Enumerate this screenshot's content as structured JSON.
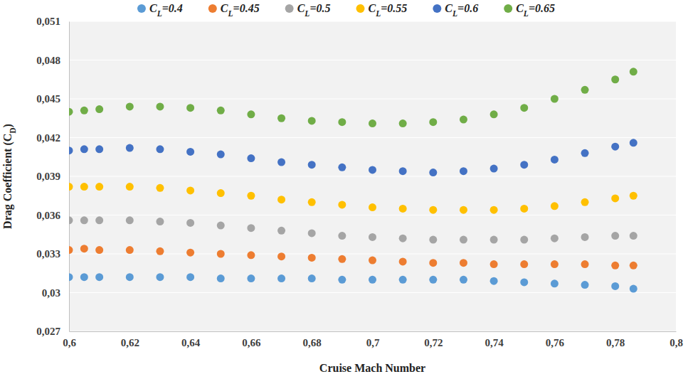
{
  "chart_data": {
    "type": "scatter",
    "x_label": "Cruise Mach Number",
    "y_label": "Drag Coefficient (CD)",
    "x": [
      0.6,
      0.605,
      0.61,
      0.62,
      0.63,
      0.64,
      0.65,
      0.66,
      0.67,
      0.68,
      0.69,
      0.7,
      0.71,
      0.72,
      0.73,
      0.74,
      0.75,
      0.76,
      0.77,
      0.78,
      0.786
    ],
    "series": [
      {
        "name": "CL=0.4",
        "color": "#5b9bd5",
        "values": [
          0.0312,
          0.0312,
          0.0312,
          0.0312,
          0.0312,
          0.0312,
          0.0311,
          0.0311,
          0.0311,
          0.0311,
          0.031,
          0.031,
          0.031,
          0.031,
          0.031,
          0.0309,
          0.0308,
          0.0307,
          0.0306,
          0.0305,
          0.0303
        ]
      },
      {
        "name": "CL=0.45",
        "color": "#ed7d31",
        "values": [
          0.0333,
          0.0334,
          0.0333,
          0.0333,
          0.0332,
          0.0331,
          0.033,
          0.0329,
          0.0328,
          0.0327,
          0.0326,
          0.0325,
          0.0324,
          0.0323,
          0.0323,
          0.0322,
          0.0322,
          0.0322,
          0.0322,
          0.0321,
          0.0321
        ]
      },
      {
        "name": "CL=0.5",
        "color": "#a5a5a5",
        "values": [
          0.0356,
          0.0356,
          0.0356,
          0.0356,
          0.0355,
          0.0354,
          0.0352,
          0.035,
          0.0348,
          0.0346,
          0.0344,
          0.0343,
          0.0342,
          0.0341,
          0.0341,
          0.0341,
          0.0341,
          0.0342,
          0.0343,
          0.0344,
          0.0344
        ]
      },
      {
        "name": "CL=0.55",
        "color": "#ffc000",
        "values": [
          0.0382,
          0.0382,
          0.0382,
          0.0382,
          0.0381,
          0.0379,
          0.0377,
          0.0375,
          0.0372,
          0.037,
          0.0368,
          0.0366,
          0.0365,
          0.0364,
          0.0364,
          0.0364,
          0.0365,
          0.0367,
          0.037,
          0.0373,
          0.0375
        ]
      },
      {
        "name": "CL=0.6",
        "color": "#4472c4",
        "values": [
          0.041,
          0.0411,
          0.0411,
          0.0412,
          0.0411,
          0.0409,
          0.0407,
          0.0404,
          0.0401,
          0.0399,
          0.0397,
          0.0395,
          0.0394,
          0.0393,
          0.0394,
          0.0396,
          0.0399,
          0.0403,
          0.0408,
          0.0413,
          0.0416
        ]
      },
      {
        "name": "CL=0.65",
        "color": "#70ad47",
        "values": [
          0.044,
          0.0441,
          0.0442,
          0.0444,
          0.0444,
          0.0443,
          0.0441,
          0.0438,
          0.0435,
          0.0433,
          0.0432,
          0.0431,
          0.0431,
          0.0432,
          0.0434,
          0.0438,
          0.0443,
          0.045,
          0.0457,
          0.0465,
          0.0471
        ]
      }
    ],
    "xlim": [
      0.6,
      0.8
    ],
    "xticks": [
      {
        "value": 0.6,
        "label": "0,6"
      },
      {
        "value": 0.62,
        "label": "0,62"
      },
      {
        "value": 0.64,
        "label": "0,64"
      },
      {
        "value": 0.66,
        "label": "0,66"
      },
      {
        "value": 0.68,
        "label": "0,68"
      },
      {
        "value": 0.7,
        "label": "0,7"
      },
      {
        "value": 0.72,
        "label": "0,72"
      },
      {
        "value": 0.74,
        "label": "0,74"
      },
      {
        "value": 0.76,
        "label": "0,76"
      },
      {
        "value": 0.78,
        "label": "0,78"
      },
      {
        "value": 0.8,
        "label": "0,8"
      }
    ],
    "ylim": [
      0.027,
      0.051
    ],
    "yticks": [
      {
        "value": 0.027,
        "label": "0,027"
      },
      {
        "value": 0.03,
        "label": "0,03"
      },
      {
        "value": 0.033,
        "label": "0,033"
      },
      {
        "value": 0.036,
        "label": "0,036"
      },
      {
        "value": 0.039,
        "label": "0,039"
      },
      {
        "value": 0.042,
        "label": "0,042"
      },
      {
        "value": 0.045,
        "label": "0,045"
      },
      {
        "value": 0.048,
        "label": "0,048"
      },
      {
        "value": 0.051,
        "label": "0,051"
      }
    ],
    "grid": true,
    "legend": "top",
    "marker": "circle"
  }
}
